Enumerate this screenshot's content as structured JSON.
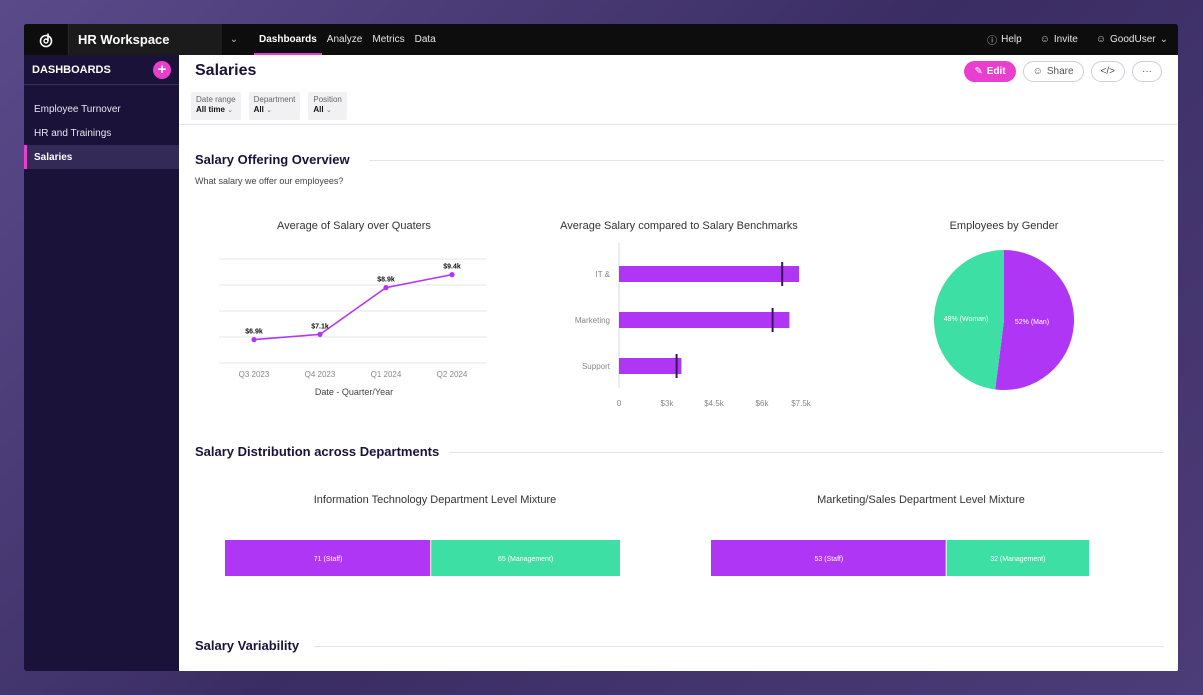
{
  "topbar": {
    "workspace": "HR Workspace",
    "nav": [
      "Dashboards",
      "Analyze",
      "Metrics",
      "Data"
    ],
    "active_nav": "Dashboards",
    "help": "Help",
    "invite": "Invite",
    "user": "GoodUser"
  },
  "sidebar": {
    "title": "DASHBOARDS",
    "items": [
      {
        "label": "Employee Turnover"
      },
      {
        "label": "HR and Trainings"
      },
      {
        "label": "Salaries"
      }
    ],
    "active": "Salaries"
  },
  "page": {
    "title": "Salaries",
    "edit": "Edit",
    "share": "Share",
    "embed": "</>",
    "more": "···"
  },
  "filters": [
    {
      "label": "Date range",
      "value": "All time"
    },
    {
      "label": "Department",
      "value": "All"
    },
    {
      "label": "Position",
      "value": "All"
    }
  ],
  "sections": {
    "overview": {
      "title": "Salary Offering Overview",
      "subtitle": "What salary we offer our employees?"
    },
    "distribution": {
      "title": "Salary Distribution across Departments"
    },
    "variability": {
      "title": "Salary Variability"
    }
  },
  "colors": {
    "accent": "#e83fcf",
    "purple": "#b036f5",
    "green": "#3ddfa5",
    "sidebar": "#1a1238"
  },
  "chart_data": [
    {
      "type": "line",
      "title": "Average of Salary over Quaters",
      "xlabel": "Date - Quarter/Year",
      "ylabel": "",
      "categories": [
        "Q3 2023",
        "Q4 2023",
        "Q1 2024",
        "Q2 2024"
      ],
      "values": [
        6.9,
        7.1,
        8.9,
        9.4
      ],
      "data_labels": [
        "$6.9k",
        "$7.1k",
        "$8.9k",
        "$9.4k"
      ],
      "ylim": [
        6.0,
        10.0
      ],
      "grid": true
    },
    {
      "type": "bar",
      "orientation": "horizontal",
      "title": "Average Salary compared to Salary Benchmarks",
      "categories": [
        "IT &",
        "Marketing",
        "Support"
      ],
      "series": [
        {
          "values": [
            7.5,
            7.1,
            2.6
          ]
        },
        {
          "values": [
            6.8,
            6.4,
            2.4
          ]
        }
      ],
      "x_ticks": [
        "0",
        "$3k",
        "$4.5k",
        "$6k",
        "$7.5k"
      ],
      "xlim": [
        0,
        7.5
      ]
    },
    {
      "type": "pie",
      "title": "Employees by Gender",
      "slices": [
        {
          "label": "48% (Woman)",
          "value": 48
        },
        {
          "label": "52% (Man)",
          "value": 52
        }
      ]
    },
    {
      "type": "bar",
      "orientation": "stacked-horizontal",
      "title": "Information Technology Department Level Mixture",
      "segments": [
        {
          "label": "71 (Staff)",
          "value": 71
        },
        {
          "label": "65 (Management)",
          "value": 65
        }
      ]
    },
    {
      "type": "bar",
      "orientation": "stacked-horizontal",
      "title": "Marketing/Sales Department Level Mixture",
      "segments": [
        {
          "label": "53 (Staff)",
          "value": 53
        },
        {
          "label": "32 (Management)",
          "value": 32
        }
      ]
    }
  ]
}
